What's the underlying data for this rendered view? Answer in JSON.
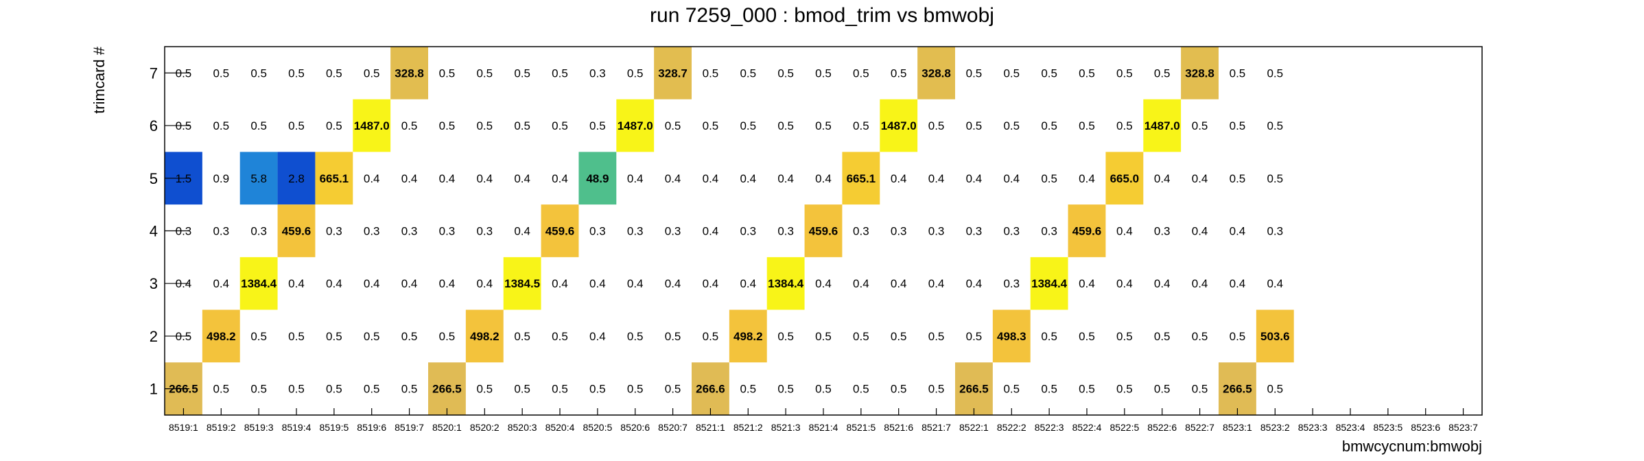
{
  "chart_data": {
    "type": "heatmap",
    "title": "run 7259_000 : bmod_trim vs bmwobj",
    "xlabel": "bmwcycnum:bmwobj",
    "ylabel": "trimcard #",
    "x_categories": [
      "8519:1",
      "8519:2",
      "8519:3",
      "8519:4",
      "8519:5",
      "8519:6",
      "8519:7",
      "8520:1",
      "8520:2",
      "8520:3",
      "8520:4",
      "8520:5",
      "8520:6",
      "8520:7",
      "8521:1",
      "8521:2",
      "8521:3",
      "8521:4",
      "8521:5",
      "8521:6",
      "8521:7",
      "8522:1",
      "8522:2",
      "8522:3",
      "8522:4",
      "8522:5",
      "8522:6",
      "8522:7",
      "8523:1",
      "8523:2",
      "8523:3",
      "8523:4",
      "8523:5",
      "8523:6",
      "8523:7"
    ],
    "y_categories": [
      "1",
      "2",
      "3",
      "4",
      "5",
      "6",
      "7"
    ],
    "grid": false,
    "legend": "none",
    "colors": {
      "text": "#000000",
      "frame": "#000000",
      "low": "#0f4fd0",
      "mid": "#4fbf8c",
      "high": "#f0c53a",
      "peak": "#f8f418"
    },
    "cells": [
      {
        "y": "7",
        "values": [
          "0.5",
          "0.5",
          "0.5",
          "0.5",
          "0.5",
          "0.5",
          "328.8",
          "0.5",
          "0.5",
          "0.5",
          "0.5",
          "0.3",
          "0.5",
          "328.7",
          "0.5",
          "0.5",
          "0.5",
          "0.5",
          "0.5",
          "0.5",
          "328.8",
          "0.5",
          "0.5",
          "0.5",
          "0.5",
          "0.5",
          "0.5",
          "328.8",
          "0.5",
          "0.5",
          "",
          "",
          "",
          "",
          ""
        ]
      },
      {
        "y": "6",
        "values": [
          "0.5",
          "0.5",
          "0.5",
          "0.5",
          "0.5",
          "1487.0",
          "0.5",
          "0.5",
          "0.5",
          "0.5",
          "0.5",
          "0.5",
          "1487.0",
          "0.5",
          "0.5",
          "0.5",
          "0.5",
          "0.5",
          "0.5",
          "1487.0",
          "0.5",
          "0.5",
          "0.5",
          "0.5",
          "0.5",
          "0.5",
          "1487.0",
          "0.5",
          "0.5",
          "0.5",
          "",
          "",
          "",
          "",
          ""
        ]
      },
      {
        "y": "5",
        "values": [
          "1.5",
          "0.9",
          "5.8",
          "2.8",
          "665.1",
          "0.4",
          "0.4",
          "0.4",
          "0.4",
          "0.4",
          "0.4",
          "48.9",
          "0.4",
          "0.4",
          "0.4",
          "0.4",
          "0.4",
          "0.4",
          "665.1",
          "0.4",
          "0.4",
          "0.4",
          "0.4",
          "0.5",
          "0.4",
          "665.0",
          "0.4",
          "0.4",
          "0.5",
          "0.5",
          "",
          "",
          "",
          "",
          ""
        ]
      },
      {
        "y": "4",
        "values": [
          "0.3",
          "0.3",
          "0.3",
          "459.6",
          "0.3",
          "0.3",
          "0.3",
          "0.3",
          "0.3",
          "0.4",
          "459.6",
          "0.3",
          "0.3",
          "0.3",
          "0.4",
          "0.3",
          "0.3",
          "459.6",
          "0.3",
          "0.3",
          "0.3",
          "0.3",
          "0.3",
          "0.3",
          "459.6",
          "0.4",
          "0.3",
          "0.4",
          "0.4",
          "0.3",
          "",
          "",
          "",
          "",
          ""
        ]
      },
      {
        "y": "3",
        "values": [
          "0.4",
          "0.4",
          "1384.4",
          "0.4",
          "0.4",
          "0.4",
          "0.4",
          "0.4",
          "0.4",
          "1384.5",
          "0.4",
          "0.4",
          "0.4",
          "0.4",
          "0.4",
          "0.4",
          "1384.4",
          "0.4",
          "0.4",
          "0.4",
          "0.4",
          "0.4",
          "0.3",
          "1384.4",
          "0.4",
          "0.4",
          "0.4",
          "0.4",
          "0.4",
          "0.4",
          "",
          "",
          "",
          "",
          ""
        ]
      },
      {
        "y": "2",
        "values": [
          "0.5",
          "498.2",
          "0.5",
          "0.5",
          "0.5",
          "0.5",
          "0.5",
          "0.5",
          "498.2",
          "0.5",
          "0.5",
          "0.4",
          "0.5",
          "0.5",
          "0.5",
          "498.2",
          "0.5",
          "0.5",
          "0.5",
          "0.5",
          "0.5",
          "0.5",
          "498.3",
          "0.5",
          "0.5",
          "0.5",
          "0.5",
          "0.5",
          "0.5",
          "503.6",
          "",
          "",
          "",
          "",
          ""
        ]
      },
      {
        "y": "1",
        "values": [
          "266.5",
          "0.5",
          "0.5",
          "0.5",
          "0.5",
          "0.5",
          "0.5",
          "266.5",
          "0.5",
          "0.5",
          "0.5",
          "0.5",
          "0.5",
          "0.5",
          "266.6",
          "0.5",
          "0.5",
          "0.5",
          "0.5",
          "0.5",
          "0.5",
          "266.5",
          "0.5",
          "0.5",
          "0.5",
          "0.5",
          "0.5",
          "0.5",
          "266.5",
          "0.5",
          "",
          "",
          "",
          "",
          ""
        ]
      }
    ]
  }
}
